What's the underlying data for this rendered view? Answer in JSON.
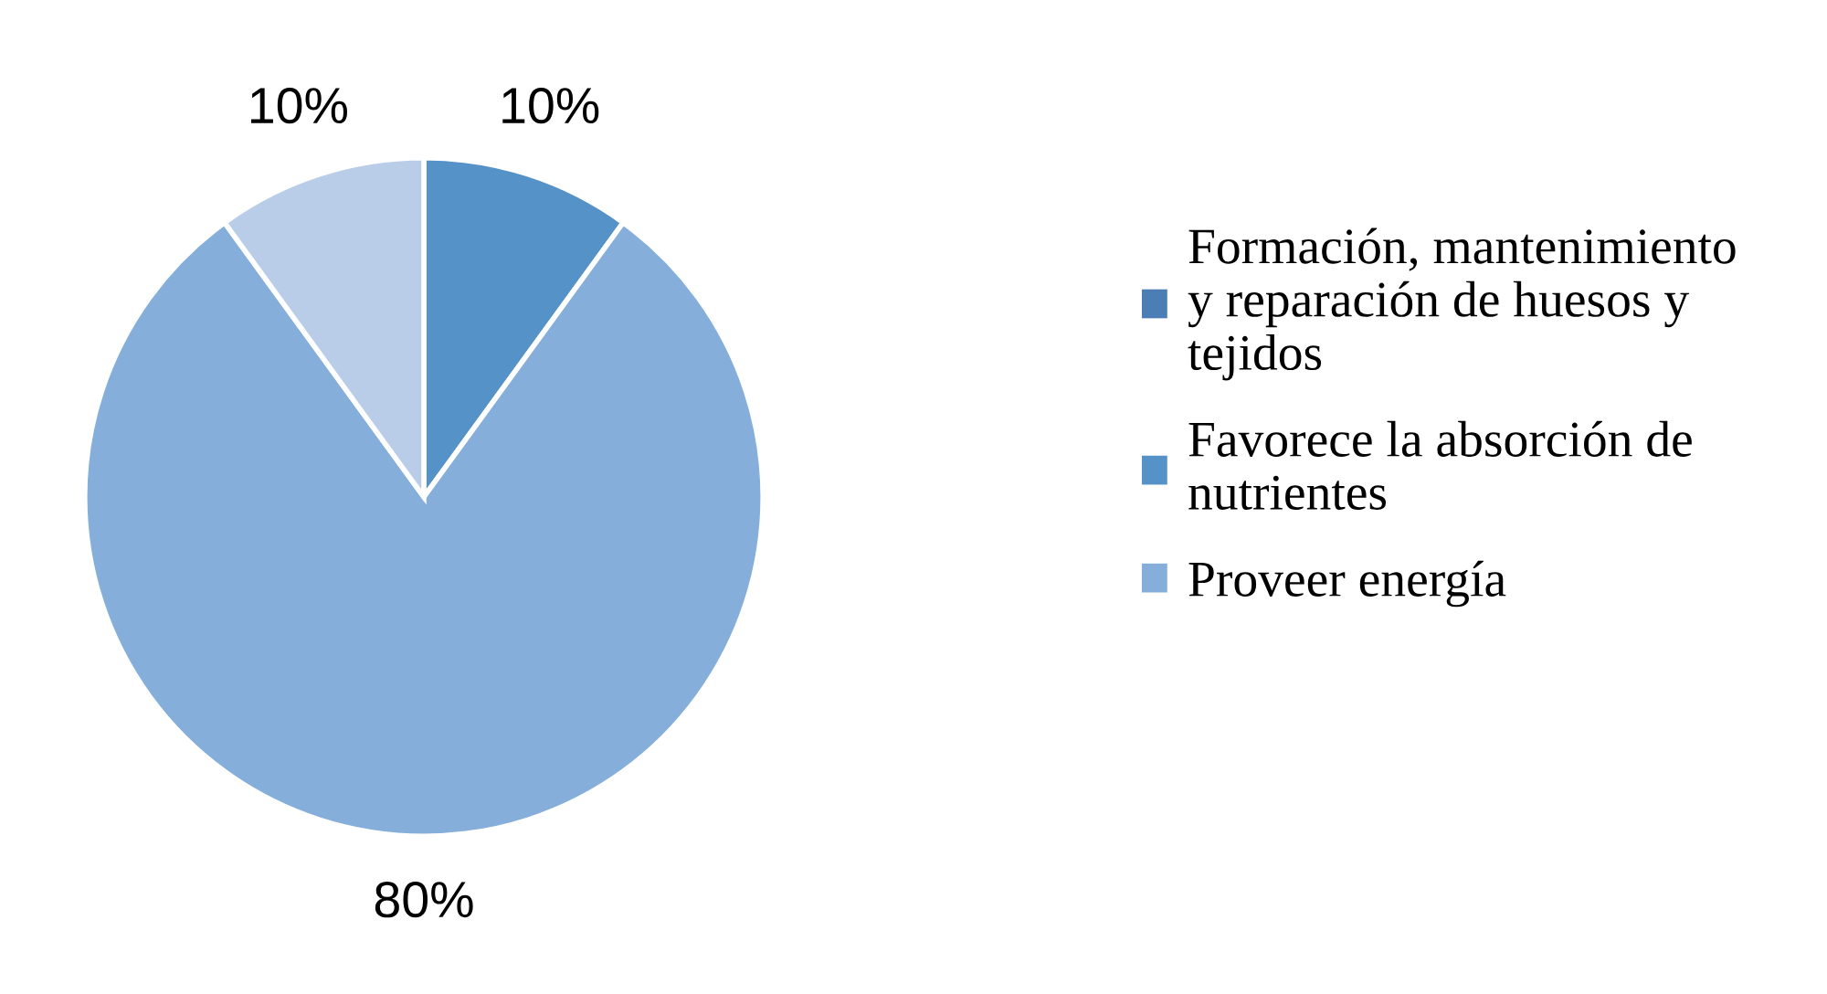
{
  "chart_data": {
    "type": "pie",
    "categories": [
      "Formación, mantenimiento y reparación de huesos y tejidos",
      "Favorece la absorción de nutrientes",
      "Proveer energía",
      null
    ],
    "values": [
      0,
      10,
      80,
      10
    ],
    "colors": [
      "#4a7eb5",
      "#5592c8",
      "#85aedb",
      "#b9cde8"
    ],
    "value_labels": [
      null,
      "10%",
      "80%",
      "10%"
    ],
    "legend": "right"
  }
}
